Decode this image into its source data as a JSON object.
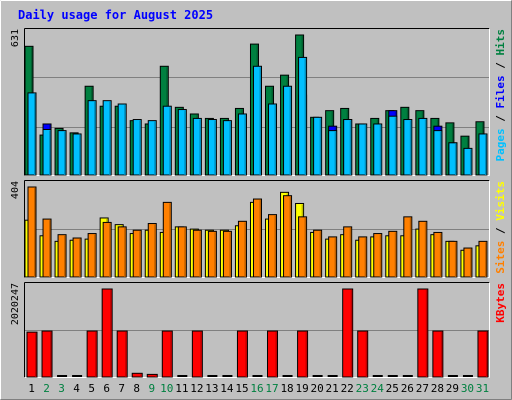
{
  "chart_data": [
    {
      "type": "bar",
      "title": "Daily usage for August 2025",
      "right_label": [
        "Pages",
        "Files",
        "Hits"
      ],
      "ymax_label": "631",
      "categories": [
        "1",
        "2",
        "3",
        "4",
        "5",
        "6",
        "7",
        "8",
        "9",
        "10",
        "11",
        "12",
        "13",
        "14",
        "15",
        "16",
        "17",
        "18",
        "19",
        "20",
        "21",
        "22",
        "23",
        "24",
        "25",
        "26",
        "27",
        "28",
        "29",
        "30",
        "31"
      ],
      "weekend_days": [
        "2",
        "3",
        "9",
        "10",
        "16",
        "17",
        "23",
        "24",
        "30",
        "31"
      ],
      "ylim": [
        0,
        631
      ],
      "series": [
        {
          "name": "Hits",
          "color": "#008040",
          "values": [
            580,
            180,
            210,
            190,
            400,
            310,
            310,
            245,
            230,
            490,
            305,
            275,
            255,
            255,
            300,
            590,
            400,
            450,
            631,
            260,
            290,
            300,
            230,
            255,
            290,
            305,
            290,
            255,
            235,
            175,
            240
          ]
        },
        {
          "name": "Files",
          "color": "#0000FF",
          "values": [
            0,
            230,
            0,
            0,
            0,
            0,
            0,
            0,
            0,
            0,
            0,
            0,
            0,
            0,
            0,
            0,
            0,
            0,
            360,
            0,
            220,
            250,
            0,
            0,
            290,
            0,
            0,
            220,
            145,
            0,
            0
          ]
        },
        {
          "name": "Pages",
          "color": "#00C0FF",
          "values": [
            370,
            205,
            200,
            185,
            335,
            335,
            320,
            250,
            245,
            310,
            295,
            255,
            250,
            245,
            275,
            490,
            320,
            400,
            530,
            260,
            200,
            250,
            230,
            230,
            265,
            250,
            255,
            200,
            145,
            120,
            185
          ]
        }
      ]
    },
    {
      "type": "bar",
      "right_label": [
        "Sites",
        "Visits"
      ],
      "ymax_label": "404",
      "categories": [
        "1",
        "2",
        "3",
        "4",
        "5",
        "6",
        "7",
        "8",
        "9",
        "10",
        "11",
        "12",
        "13",
        "14",
        "15",
        "16",
        "17",
        "18",
        "19",
        "20",
        "21",
        "22",
        "23",
        "24",
        "25",
        "26",
        "27",
        "28",
        "29",
        "30",
        "31"
      ],
      "ylim": [
        0,
        404
      ],
      "series": [
        {
          "name": "Visits",
          "color": "#FFFF00",
          "values": [
            255,
            185,
            160,
            165,
            170,
            265,
            235,
            195,
            210,
            200,
            225,
            215,
            210,
            210,
            230,
            335,
            260,
            380,
            330,
            200,
            170,
            190,
            165,
            180,
            185,
            185,
            215,
            190,
            160,
            120,
            140
          ]
        },
        {
          "name": "Sites",
          "color": "#FF8000",
          "values": [
            404,
            260,
            190,
            175,
            195,
            245,
            225,
            210,
            240,
            335,
            225,
            210,
            205,
            205,
            250,
            350,
            280,
            365,
            270,
            210,
            180,
            225,
            180,
            195,
            205,
            270,
            250,
            200,
            160,
            130,
            160
          ]
        }
      ]
    },
    {
      "type": "bar",
      "right_label": [
        "KBytes"
      ],
      "ymax_label": "2020247",
      "categories": [
        "1",
        "2",
        "3",
        "4",
        "5",
        "6",
        "7",
        "8",
        "9",
        "10",
        "11",
        "12",
        "13",
        "14",
        "15",
        "16",
        "17",
        "18",
        "19",
        "20",
        "21",
        "22",
        "23",
        "24",
        "25",
        "26",
        "27",
        "28",
        "29",
        "30",
        "31"
      ],
      "ylim": [
        0,
        2020247
      ],
      "series": [
        {
          "name": "KBytes",
          "color": "#FF0000",
          "values": [
            1030000,
            1055000,
            0,
            0,
            1055000,
            2020247,
            1055000,
            85000,
            60000,
            1055000,
            0,
            1055000,
            0,
            0,
            1055000,
            0,
            1055000,
            0,
            1055000,
            0,
            0,
            2020247,
            1055000,
            0,
            0,
            0,
            2020247,
            1055000,
            0,
            0,
            1055000
          ]
        }
      ]
    }
  ]
}
